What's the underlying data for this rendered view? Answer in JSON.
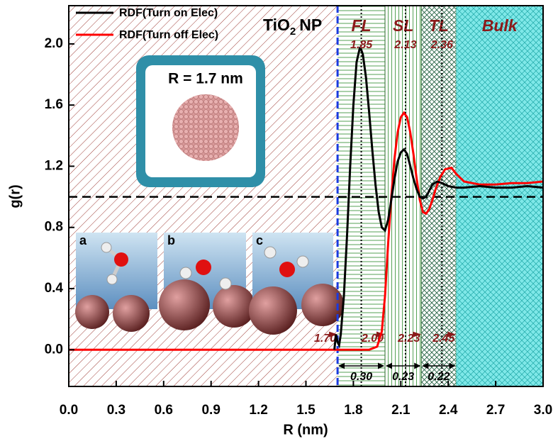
{
  "chart_data": {
    "type": "line",
    "x_label": "R (nm)",
    "y_label": "g(r)",
    "xlim": [
      0,
      3.0
    ],
    "ylim": [
      -0.24,
      2.25
    ],
    "xticks": [
      {
        "value": 0,
        "label": "0.0"
      },
      {
        "value": 0.3,
        "label": "0.3"
      },
      {
        "value": 0.6,
        "label": "0.6"
      },
      {
        "value": 0.9,
        "label": "0.9"
      },
      {
        "value": 1.2,
        "label": "1.2"
      },
      {
        "value": 1.5,
        "label": "1.5"
      },
      {
        "value": 1.8,
        "label": "1.8"
      },
      {
        "value": 2.1,
        "label": "2.1"
      },
      {
        "value": 2.4,
        "label": "2.4"
      },
      {
        "value": 2.7,
        "label": "2.7"
      },
      {
        "value": 3.0,
        "label": "3.0"
      }
    ],
    "yticks": [
      {
        "value": 0,
        "label": "0.0"
      },
      0.4,
      0.8,
      1.2,
      1.6,
      {
        "value": 2.0,
        "label": "2.0"
      }
    ],
    "legend": "top-left",
    "reference_line": 1,
    "series": [
      {
        "name": "RDF(Turn on Elec)",
        "color": "#000000",
        "x": [
          1.68,
          1.69,
          1.7,
          1.71,
          1.72,
          1.74,
          1.76,
          1.78,
          1.8,
          1.82,
          1.84,
          1.85,
          1.86,
          1.88,
          1.9,
          1.92,
          1.94,
          1.96,
          1.98,
          2.0,
          2.02,
          2.04,
          2.06,
          2.08,
          2.1,
          2.12,
          2.14,
          2.16,
          2.18,
          2.2,
          2.22,
          2.24,
          2.26,
          2.28,
          2.3,
          2.33,
          2.36,
          2.4,
          2.45,
          2.5,
          2.6,
          2.7,
          2.8,
          2.9,
          3.0
        ],
        "values": [
          0.0,
          0.1,
          0.05,
          0.03,
          0.1,
          0.35,
          0.75,
          1.2,
          1.6,
          1.88,
          1.97,
          1.96,
          1.93,
          1.78,
          1.55,
          1.3,
          1.08,
          0.9,
          0.8,
          0.78,
          0.85,
          0.98,
          1.12,
          1.23,
          1.29,
          1.31,
          1.28,
          1.2,
          1.12,
          1.05,
          1.0,
          0.99,
          1.0,
          1.04,
          1.08,
          1.1,
          1.09,
          1.07,
          1.06,
          1.06,
          1.07,
          1.06,
          1.06,
          1.07,
          1.06
        ]
      },
      {
        "name": "RDF(Turn off Elec)",
        "color": "#ff0000",
        "x": [
          0,
          1.9,
          1.95,
          1.98,
          2.0,
          2.02,
          2.04,
          2.06,
          2.08,
          2.1,
          2.12,
          2.14,
          2.16,
          2.18,
          2.2,
          2.22,
          2.24,
          2.26,
          2.28,
          2.3,
          2.32,
          2.35,
          2.38,
          2.42,
          2.45,
          2.5,
          2.6,
          2.7,
          2.8,
          2.9,
          3.0
        ],
        "values": [
          0,
          0,
          0.02,
          0.12,
          0.35,
          0.7,
          1.0,
          1.25,
          1.42,
          1.52,
          1.55,
          1.52,
          1.42,
          1.28,
          1.12,
          0.98,
          0.9,
          0.89,
          0.92,
          0.98,
          1.05,
          1.13,
          1.18,
          1.19,
          1.15,
          1.1,
          1.08,
          1.08,
          1.09,
          1.09,
          1.1
        ]
      }
    ],
    "boundaries": [
      {
        "value": 1.7,
        "label": "1.70"
      },
      {
        "value": 2.0,
        "label": "2.00"
      },
      2.23,
      2.45
    ],
    "layers": [
      {
        "name": "FL",
        "peak": 1.85,
        "width": {
          "value": 0.3,
          "label": "0.30"
        }
      },
      {
        "name": "SL",
        "peak": 2.13,
        "width": 0.23
      },
      {
        "name": "TL",
        "peak": 2.36,
        "width": 0.22
      },
      {
        "name": "Bulk"
      }
    ],
    "np_label": {
      "main": "TiO",
      "sub": "2",
      "suffix": "NP"
    },
    "inset": {
      "radius_label": "R = 1.7 nm",
      "panels": [
        "a",
        "b",
        "c"
      ]
    }
  }
}
